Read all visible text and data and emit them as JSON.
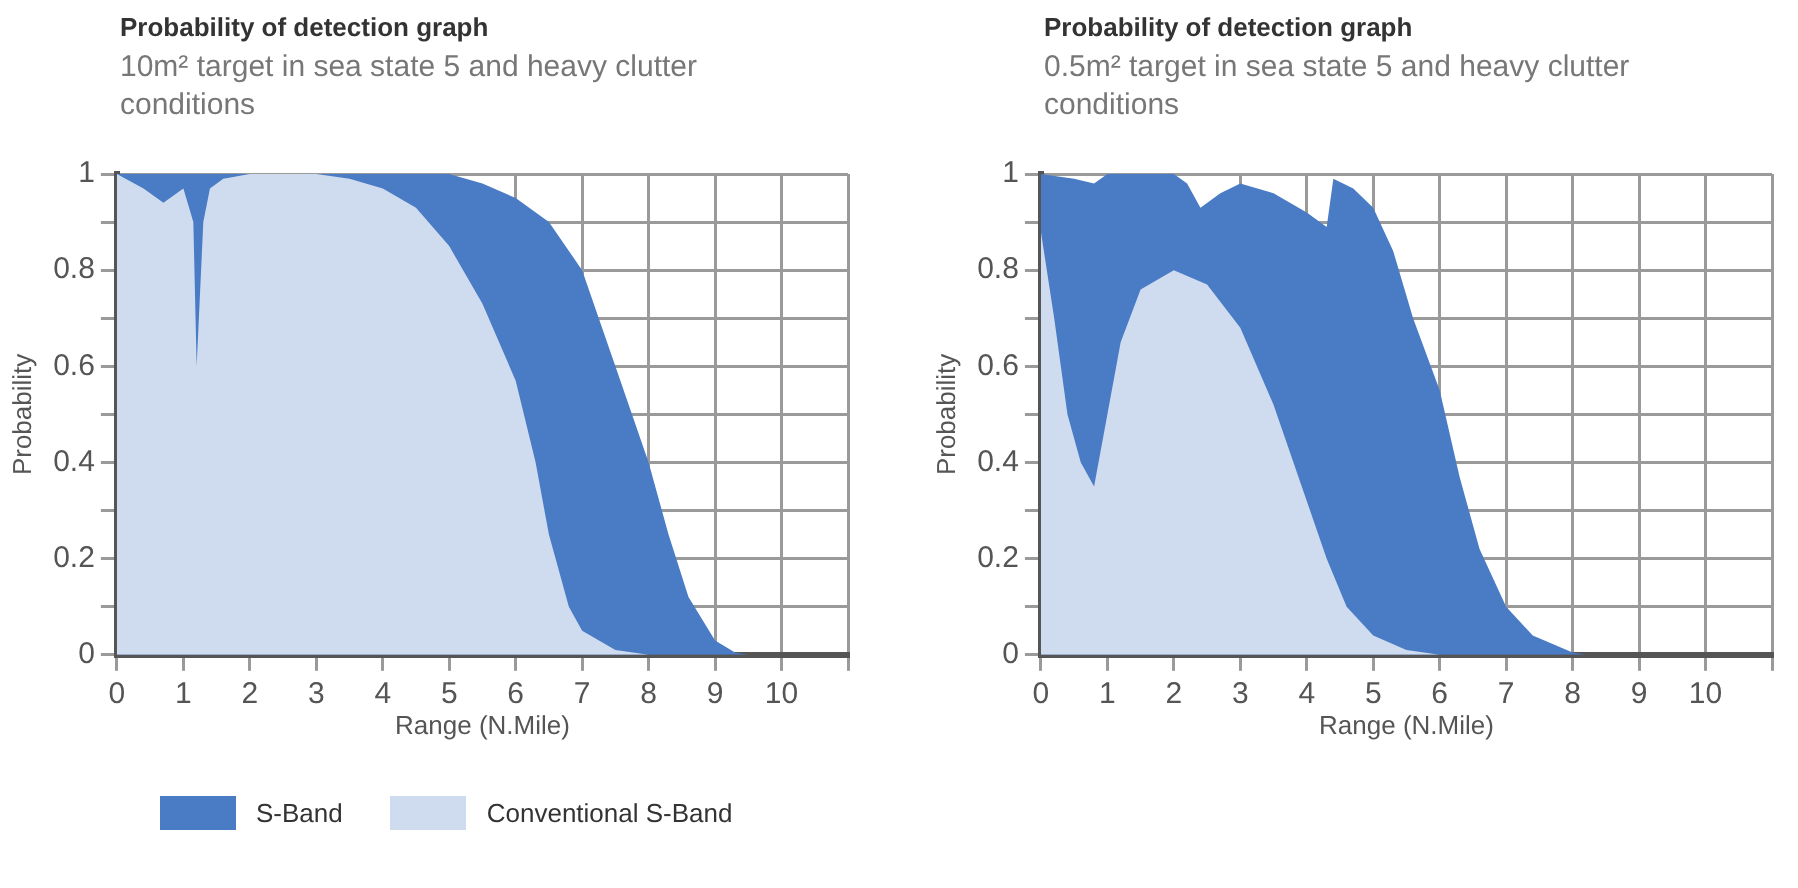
{
  "chart_data": [
    {
      "type": "area",
      "title": "Probability of detection graph",
      "subtitle": "10m² target in sea state 5 and heavy clutter conditions",
      "xlabel": "Range (N.Mile)",
      "ylabel": "Probability",
      "xlim": [
        0,
        11
      ],
      "xticks": [
        0,
        1,
        2,
        3,
        4,
        5,
        6,
        7,
        8,
        9,
        10,
        {
          "value": 11,
          "label": null
        }
      ],
      "ylim": [
        0,
        1
      ],
      "yticks": [
        0,
        {
          "value": 0.1,
          "label": null
        },
        0.2,
        {
          "value": 0.3,
          "label": null
        },
        0.4,
        {
          "value": 0.5,
          "label": null
        },
        0.6,
        {
          "value": 0.7,
          "label": null
        },
        0.8,
        {
          "value": 0.9,
          "label": null
        },
        1
      ],
      "grid": true,
      "legend": "bottom",
      "series": [
        {
          "name": "S-Band",
          "color": "#4a7cc6",
          "x": [
            0,
            1,
            2,
            3,
            4,
            5,
            5.5,
            6,
            6.5,
            7,
            7.5,
            8,
            8.3,
            8.6,
            9,
            9.3,
            9.5
          ],
          "values": [
            1,
            1,
            1,
            1,
            1,
            1,
            0.98,
            0.95,
            0.9,
            0.8,
            0.6,
            0.4,
            0.25,
            0.12,
            0.03,
            0.005,
            0
          ]
        },
        {
          "name": "Conventional S-Band",
          "color": "#cfdcf0",
          "x": [
            0,
            0.4,
            0.7,
            1,
            1.15,
            1.2,
            1.3,
            1.4,
            1.6,
            2,
            3,
            3.5,
            4,
            4.5,
            5,
            5.5,
            6,
            6.3,
            6.5,
            6.8,
            7,
            7.5,
            8
          ],
          "values": [
            1,
            0.97,
            0.94,
            0.97,
            0.9,
            0.6,
            0.9,
            0.97,
            0.99,
            1,
            1,
            0.99,
            0.97,
            0.93,
            0.85,
            0.73,
            0.57,
            0.4,
            0.25,
            0.1,
            0.05,
            0.01,
            0
          ]
        }
      ]
    },
    {
      "type": "area",
      "title": "Probability of detection graph",
      "subtitle": "0.5m² target in sea state 5 and heavy clutter conditions",
      "xlabel": "Range (N.Mile)",
      "ylabel": "Probability",
      "xlim": [
        0,
        11
      ],
      "xticks": [
        0,
        1,
        2,
        3,
        4,
        5,
        6,
        7,
        8,
        9,
        10,
        {
          "value": 11,
          "label": null
        }
      ],
      "ylim": [
        0,
        1
      ],
      "yticks": [
        0,
        {
          "value": 0.1,
          "label": null
        },
        0.2,
        {
          "value": 0.3,
          "label": null
        },
        0.4,
        {
          "value": 0.5,
          "label": null
        },
        0.6,
        {
          "value": 0.7,
          "label": null
        },
        0.8,
        {
          "value": 0.9,
          "label": null
        },
        1
      ],
      "grid": true,
      "series": [
        {
          "color": "#4a7cc6",
          "x": [
            0,
            0.5,
            0.8,
            1,
            2,
            2.2,
            2.4,
            2.7,
            3,
            3.5,
            4,
            4.3,
            4.4,
            4.7,
            5,
            5.3,
            5.6,
            6,
            6.3,
            6.6,
            7,
            7.4,
            8,
            8.2
          ],
          "values": [
            1,
            0.99,
            0.98,
            1,
            1,
            0.98,
            0.93,
            0.96,
            0.98,
            0.96,
            0.92,
            0.89,
            0.99,
            0.97,
            0.93,
            0.84,
            0.7,
            0.55,
            0.37,
            0.22,
            0.1,
            0.04,
            0.005,
            0
          ]
        },
        {
          "color": "#cfdcf0",
          "x": [
            0,
            0.2,
            0.4,
            0.6,
            0.8,
            1,
            1.2,
            1.5,
            2,
            2.5,
            3,
            3.5,
            4,
            4.3,
            4.6,
            5,
            5.5,
            6
          ],
          "values": [
            0.88,
            0.7,
            0.5,
            0.4,
            0.35,
            0.5,
            0.65,
            0.76,
            0.8,
            0.77,
            0.68,
            0.52,
            0.32,
            0.2,
            0.1,
            0.04,
            0.01,
            0
          ]
        }
      ]
    }
  ]
}
